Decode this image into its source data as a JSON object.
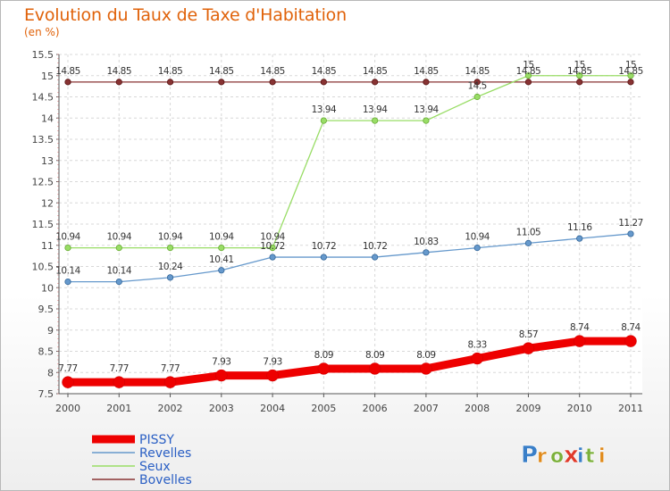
{
  "header": {
    "title": "Evolution du Taux de Taxe d'Habitation",
    "unit": "(en %)"
  },
  "branding": {
    "logo_text": "Proxiti"
  },
  "chart_data": {
    "type": "line",
    "title": "Evolution du Taux de Taxe d'Habitation",
    "ylabel": "(en %)",
    "xlabel": "",
    "x": [
      "2000",
      "2001",
      "2002",
      "2003",
      "2004",
      "2005",
      "2006",
      "2007",
      "2008",
      "2009",
      "2010",
      "2011"
    ],
    "ylim": [
      7.5,
      15.5
    ],
    "yticks": [
      "7.5",
      "8",
      "8.5",
      "9",
      "9.5",
      "10",
      "10.5",
      "11",
      "11.5",
      "12",
      "12.5",
      "13",
      "13.5",
      "14",
      "14.5",
      "15",
      "15.5"
    ],
    "grid": true,
    "legend_position": "bottom-left",
    "series": [
      {
        "name": "PISSY",
        "color": "#ee0000",
        "values": [
          7.77,
          7.77,
          7.77,
          7.93,
          7.93,
          8.09,
          8.09,
          8.09,
          8.33,
          8.57,
          8.74,
          8.74
        ],
        "labels": [
          "7.77",
          "7.77",
          "7.77",
          "7.93",
          "7.93",
          "8.09",
          "8.09",
          "8.09",
          "8.33",
          "8.57",
          "8.74",
          "8.74"
        ]
      },
      {
        "name": "Revelles",
        "color": "#6699cc",
        "values": [
          10.14,
          10.14,
          10.24,
          10.41,
          10.72,
          10.72,
          10.72,
          10.83,
          10.94,
          11.05,
          11.16,
          11.27
        ],
        "labels": [
          "10.14",
          "10.14",
          "10.24",
          "10.41",
          "10.72",
          "10.72",
          "10.72",
          "10.83",
          "10.94",
          "11.05",
          "11.16",
          "11.27"
        ]
      },
      {
        "name": "Seux",
        "color": "#99dd66",
        "values": [
          10.94,
          10.94,
          10.94,
          10.94,
          10.94,
          13.94,
          13.94,
          13.94,
          14.5,
          15,
          15,
          15
        ],
        "labels": [
          "10.94",
          "10.94",
          "10.94",
          "10.94",
          "10.94",
          "13.94",
          "13.94",
          "13.94",
          "14.5",
          "15",
          "15",
          "15"
        ]
      },
      {
        "name": "Bovelles",
        "color": "#883333",
        "values": [
          14.85,
          14.85,
          14.85,
          14.85,
          14.85,
          14.85,
          14.85,
          14.85,
          14.85,
          14.85,
          14.85,
          14.85
        ],
        "labels": [
          "14.85",
          "14.85",
          "14.85",
          "14.85",
          "14.85",
          "14.85",
          "14.85",
          "14.85",
          "14.85",
          "14.85",
          "14.85",
          "14.85"
        ]
      }
    ]
  }
}
